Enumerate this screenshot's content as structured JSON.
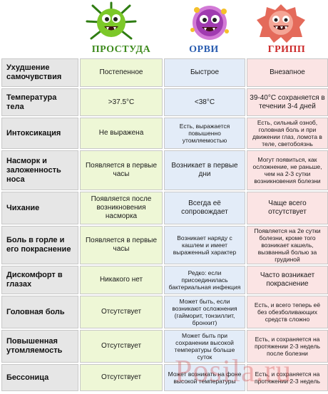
{
  "columns": {
    "col1": {
      "title": "ПРОСТУДА",
      "color": "#3d8a1c",
      "icon": "green-germ-icon"
    },
    "col2": {
      "title": "ОРВИ",
      "color": "#2a5db0",
      "icon": "purple-germ-icon"
    },
    "col3": {
      "title": "ГРИПП",
      "color": "#cc2a2a",
      "icon": "red-germ-icon"
    }
  },
  "rows": [
    {
      "label": "Ухудшение самочувствия",
      "c1": "Постепенное",
      "c2": "Быстрое",
      "c3": "Внезапное"
    },
    {
      "label": "Температура тела",
      "c1": ">37.5°C",
      "c2": "<38°C",
      "c3": "39-40°C сохраняется в течении 3-4 дней"
    },
    {
      "label": "Интоксикация",
      "c1": "Не выражена",
      "c2": "Есть, выражается повышенно утомляемостью",
      "c3": "Есть, сильный озноб, головная боль и при движении глаз, ломота в теле, светобоязнь"
    },
    {
      "label": "Насморк и заложенность носа",
      "c1": "Появляется в первые часы",
      "c2": "Возникает в первые дни",
      "c3": "Могут появиться, как осложнение, не раньше, чем на 2-3 сутки возникновения болезни"
    },
    {
      "label": "Чихание",
      "c1": "Появляется после возникновения насморка",
      "c2": "Всегда её сопровождает",
      "c3": "Чаще всего отсутствует"
    },
    {
      "label": "Боль в горле и его покраснение",
      "c1": "Появляется в первые часы",
      "c2": "Возникает наряду с кашлем и имеет выраженный характер",
      "c3": "Появляется на 2е сутки болезни, кроме того возникает кашель, вызванный болью за грудиной"
    },
    {
      "label": "Дискомфорт в глазах",
      "c1": "Никакого нет",
      "c2": "Редко: если присоединилась бактериальная инфекция",
      "c3": "Часто возникает покраснение"
    },
    {
      "label": "Головная боль",
      "c1": "Отсутствует",
      "c2": "Может быть, если возникают осложнения (гайморит, тонзиллит, бронхит)",
      "c3": "Есть, и всего теперь её без обезболивающих средств сложно"
    },
    {
      "label": "Повышенная утомляемость",
      "c1": "Отсутствует",
      "c2": "Может быть при сохранении высокой температуры больше суток",
      "c3": "Есть, и сохраняется на протяжении 2-3 недель после болезни"
    },
    {
      "label": "Бессоница",
      "c1": "Отсутствует",
      "c2": "Может возникать на фоне высокой температуры",
      "c3": "Есть, и сохраняется на протяжении 2-3 недель"
    }
  ],
  "watermark": "Posila.ru"
}
